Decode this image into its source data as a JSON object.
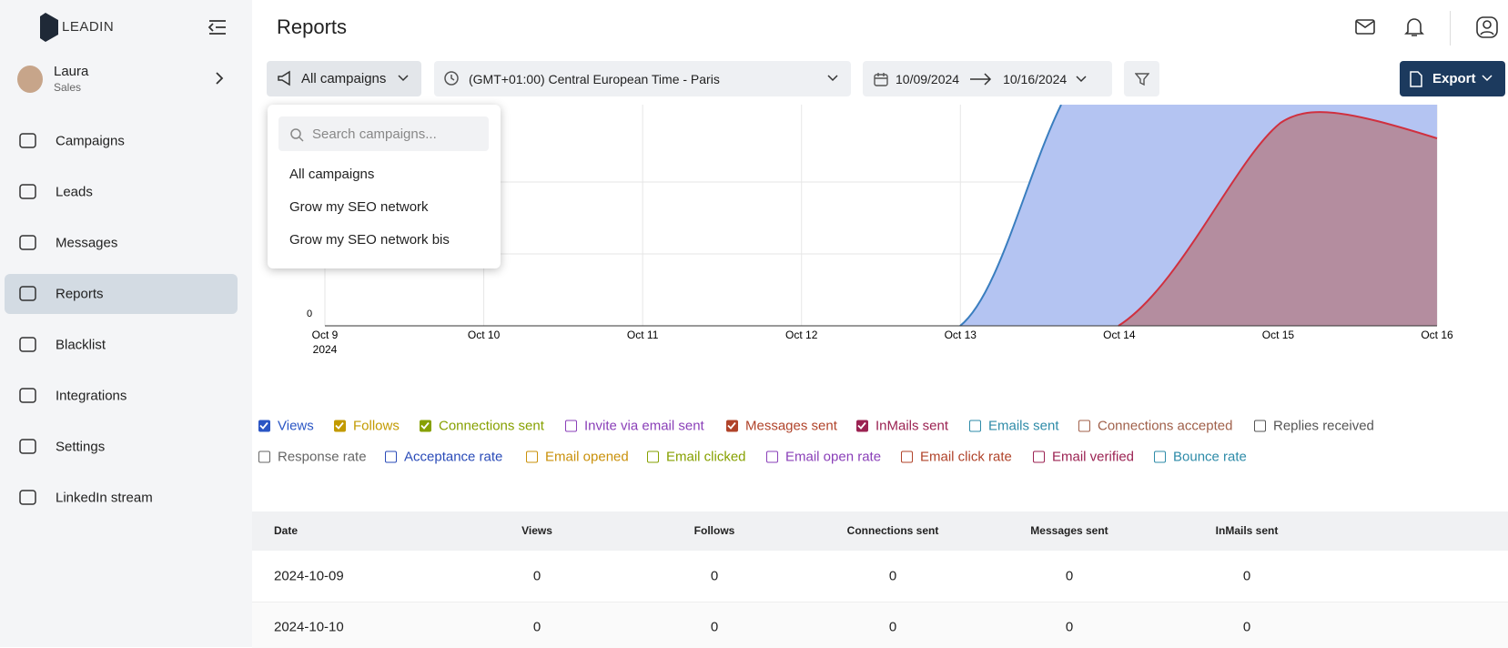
{
  "sidebar": {
    "brand": "LEADIN",
    "user": {
      "name": "Laura",
      "role": "Sales"
    },
    "nav": [
      "Campaigns",
      "Leads",
      "Messages",
      "Reports",
      "Blacklist",
      "Integrations",
      "Settings",
      "LinkedIn stream"
    ],
    "active": 3
  },
  "header": {
    "title": "Reports"
  },
  "filters": {
    "campaign": "All campaigns",
    "timezone": "(GMT+01:00) Central European Time - Paris",
    "date_from": "10/09/2024",
    "date_to": "10/16/2024",
    "export": "Export"
  },
  "dropdown": {
    "search_placeholder": "Search campaigns...",
    "items": [
      "All campaigns",
      "Grow my SEO network",
      "Grow my SEO network bis"
    ]
  },
  "chart": {
    "y_label": "0",
    "x_labels": [
      "Oct 9",
      "Oct 10",
      "Oct 11",
      "Oct 12",
      "Oct 13",
      "Oct 14",
      "Oct 15",
      "Oct 16"
    ],
    "year": "2024"
  },
  "legend": [
    [
      {
        "name": "Views",
        "checked": true,
        "color": "#2a55c4"
      },
      {
        "name": "Follows",
        "checked": true,
        "color": "#c29a00"
      },
      {
        "name": "Connections sent",
        "checked": true,
        "color": "#86a000"
      },
      {
        "name": "Invite via email sent",
        "checked": false,
        "color": "#8a3fb8"
      },
      {
        "name": "Messages sent",
        "checked": true,
        "color": "#b0432a"
      },
      {
        "name": "InMails sent",
        "checked": true,
        "color": "#9b2252"
      },
      {
        "name": "Emails sent",
        "checked": false,
        "color": "#2e8ba8"
      },
      {
        "name": "Connections accepted",
        "checked": false,
        "color": "#a0604a"
      },
      {
        "name": "Replies received",
        "checked": false,
        "color": "#555555"
      }
    ],
    [
      {
        "name": "Response rate",
        "checked": false,
        "color": "#666666"
      },
      {
        "name": "Acceptance rate",
        "checked": false,
        "color": "#2a4bb8"
      },
      {
        "name": "Email opened",
        "checked": false,
        "color": "#c9900a"
      },
      {
        "name": "Email clicked",
        "checked": false,
        "color": "#86a000"
      },
      {
        "name": "Email open rate",
        "checked": false,
        "color": "#8a3fb8"
      },
      {
        "name": "Email click rate",
        "checked": false,
        "color": "#b0432a"
      },
      {
        "name": "Email verified",
        "checked": false,
        "color": "#9b2252"
      },
      {
        "name": "Bounce rate",
        "checked": false,
        "color": "#2e8ba8"
      }
    ]
  ],
  "table": {
    "columns": [
      "Date",
      "Views",
      "Follows",
      "Connections sent",
      "Messages sent",
      "InMails sent"
    ],
    "rows": [
      [
        "2024-10-09",
        0,
        0,
        0,
        0,
        0
      ],
      [
        "2024-10-10",
        0,
        0,
        0,
        0,
        0
      ]
    ]
  }
}
